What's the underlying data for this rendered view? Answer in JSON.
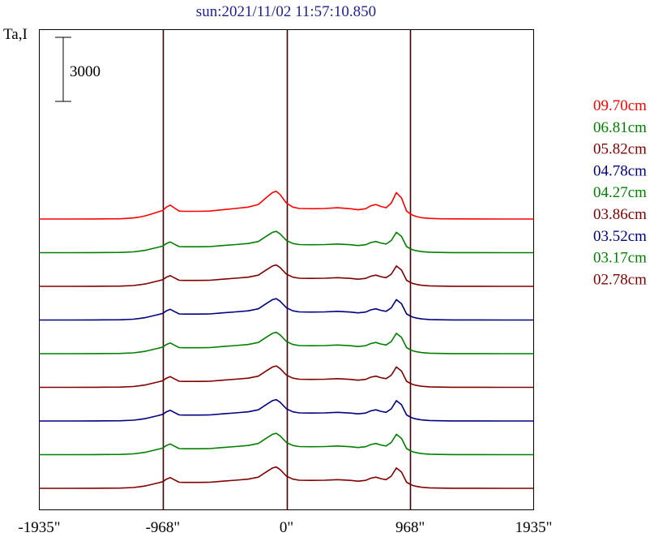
{
  "chart_data": {
    "type": "line",
    "title": "sun:2021/11/02 11:57:10.850",
    "ylabel": "Ta,I",
    "scale_bar_label": "3000",
    "scale_bar_value": 3000,
    "xlim": [
      -1935,
      1935
    ],
    "x_ticks": [
      {
        "value": -1935,
        "label": "-1935\""
      },
      {
        "value": -968,
        "label": "-968\""
      },
      {
        "value": 0,
        "label": "0\""
      },
      {
        "value": 968,
        "label": "968\""
      },
      {
        "value": 1935,
        "label": "1935\""
      }
    ],
    "vlines": [
      -968,
      0,
      968
    ],
    "x": [
      -1935,
      -1700,
      -1500,
      -1300,
      -1200,
      -1150,
      -1100,
      -1050,
      -1000,
      -968,
      -940,
      -910,
      -880,
      -840,
      -800,
      -700,
      -600,
      -500,
      -400,
      -300,
      -220,
      -160,
      -110,
      -80,
      -50,
      0,
      50,
      100,
      200,
      300,
      400,
      500,
      560,
      620,
      660,
      700,
      740,
      780,
      820,
      860,
      900,
      940,
      968,
      990,
      1020,
      1060,
      1120,
      1200,
      1300,
      1500,
      1700,
      1935
    ],
    "profile": [
      0,
      0,
      0.5,
      2,
      8,
      15,
      25,
      40,
      55,
      65,
      90,
      105,
      85,
      60,
      58,
      58,
      60,
      70,
      80,
      90,
      110,
      160,
      200,
      210,
      185,
      120,
      90,
      80,
      78,
      80,
      85,
      78,
      70,
      78,
      100,
      110,
      95,
      85,
      120,
      200,
      160,
      60,
      40,
      28,
      18,
      10,
      5,
      2,
      1,
      0.5,
      0,
      0
    ],
    "series": [
      {
        "name": "09.70cm",
        "color": "#ff0000",
        "peak": 1300
      },
      {
        "name": "06.81cm",
        "color": "#008000",
        "peak": 1000
      },
      {
        "name": "05.82cm",
        "color": "#800000",
        "peak": 1000
      },
      {
        "name": "04.78cm",
        "color": "#000080",
        "peak": 1000
      },
      {
        "name": "04.27cm",
        "color": "#008000",
        "peak": 1000
      },
      {
        "name": "03.86cm",
        "color": "#800000",
        "peak": 1000
      },
      {
        "name": "03.52cm",
        "color": "#000080",
        "peak": 1000
      },
      {
        "name": "03.17cm",
        "color": "#008000",
        "peak": 1000
      },
      {
        "name": "02.78cm",
        "color": "#800000",
        "peak": 1000
      }
    ],
    "grid": false,
    "legend_position": "right"
  }
}
